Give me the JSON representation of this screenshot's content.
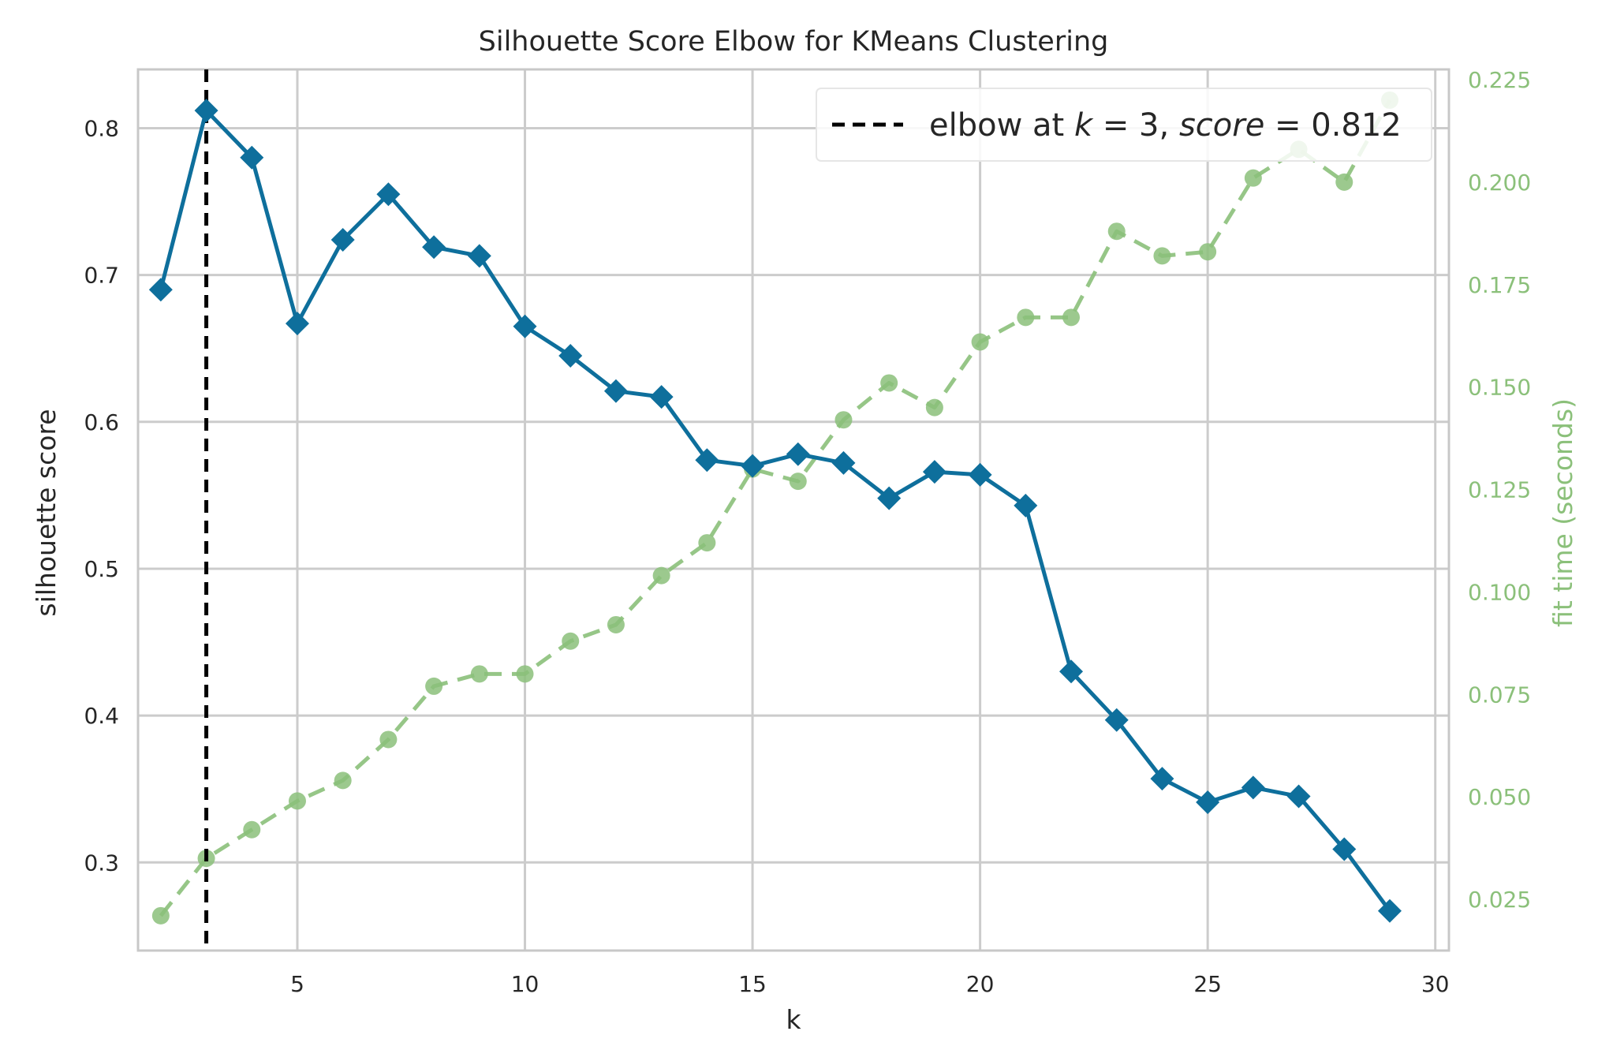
{
  "chart_data": {
    "type": "line",
    "title": "Silhouette Score Elbow for KMeans Clustering",
    "xlabel": "k",
    "ylabel": "silhouette score",
    "y2label": "fit time (seconds)",
    "xlim": [
      1.5,
      30.3
    ],
    "ylim": [
      0.24,
      0.84
    ],
    "y2lim": [
      0.0125,
      0.2275
    ],
    "x_ticks": [
      5,
      10,
      15,
      20,
      25,
      30
    ],
    "y_ticks": [
      0.3,
      0.4,
      0.5,
      0.6,
      0.7,
      0.8
    ],
    "y2_ticks": [
      0.025,
      0.05,
      0.075,
      0.1,
      0.125,
      0.15,
      0.175,
      0.2,
      0.225
    ],
    "x_tick_labels": [
      "5",
      "10",
      "15",
      "20",
      "25",
      "30"
    ],
    "y_tick_labels": [
      "0.3",
      "0.4",
      "0.5",
      "0.6",
      "0.7",
      "0.8"
    ],
    "y2_tick_labels": [
      "0.025",
      "0.050",
      "0.075",
      "0.100",
      "0.125",
      "0.150",
      "0.175",
      "0.200",
      "0.225"
    ],
    "grid": true,
    "legend_position": "top-right",
    "legend": {
      "label_prefix": "elbow at ",
      "label_k": "k",
      "label_mid": " = 3, ",
      "label_score": "score",
      "label_suffix": " = 0.812"
    },
    "elbow": {
      "k": 3,
      "score": 0.812
    },
    "x": [
      2,
      3,
      4,
      5,
      6,
      7,
      8,
      9,
      10,
      11,
      12,
      13,
      14,
      15,
      16,
      17,
      18,
      19,
      20,
      21,
      22,
      23,
      24,
      25,
      26,
      27,
      28,
      29
    ],
    "series": [
      {
        "name": "silhouette score",
        "axis": "left",
        "marker": "diamond",
        "color": "#0e6f9c",
        "values": [
          0.69,
          0.812,
          0.78,
          0.667,
          0.724,
          0.755,
          0.719,
          0.713,
          0.665,
          0.645,
          0.621,
          0.617,
          0.574,
          0.57,
          0.578,
          0.572,
          0.548,
          0.566,
          0.564,
          0.543,
          0.43,
          0.397,
          0.357,
          0.341,
          0.351,
          0.345,
          0.309,
          0.267
        ]
      },
      {
        "name": "fit time (seconds)",
        "axis": "right",
        "marker": "circle",
        "color": "#8bc07a",
        "values": [
          0.021,
          0.035,
          0.042,
          0.049,
          0.054,
          0.064,
          0.077,
          0.08,
          0.08,
          0.088,
          0.092,
          0.104,
          0.112,
          0.13,
          0.127,
          0.142,
          0.151,
          0.145,
          0.161,
          0.167,
          0.167,
          0.188,
          0.182,
          0.183,
          0.201,
          0.208,
          0.2,
          0.22
        ]
      }
    ],
    "colors": {
      "score_line": "#0e6f9c",
      "fit_time_line": "#8bc07a",
      "elbow_line": "#000000",
      "grid": "#cccccc",
      "text": "#262626"
    }
  }
}
